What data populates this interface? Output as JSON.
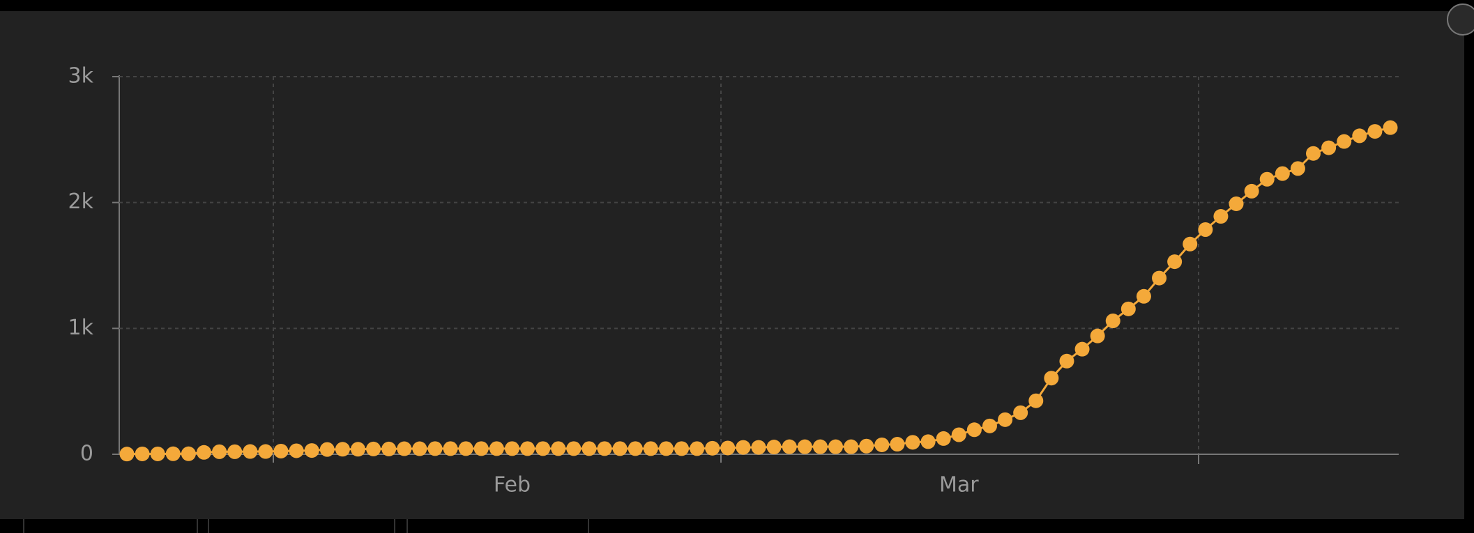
{
  "chart_data": {
    "type": "line",
    "color": "#f4a93a",
    "categories": [
      null,
      null,
      null,
      null,
      null,
      null,
      null,
      null,
      null,
      null,
      null,
      null,
      null,
      null,
      null,
      null,
      null,
      null,
      null,
      null,
      null,
      null,
      null,
      null,
      null,
      "Feb",
      null,
      null,
      null,
      null,
      null,
      null,
      null,
      null,
      null,
      null,
      null,
      null,
      null,
      null,
      null,
      null,
      null,
      null,
      null,
      null,
      null,
      null,
      null,
      null,
      null,
      null,
      null,
      null,
      "Mar",
      null,
      null,
      null,
      null,
      null,
      null,
      null,
      null,
      null,
      null,
      null,
      null,
      null,
      null,
      null,
      null,
      null,
      null,
      null,
      null,
      null,
      null,
      null,
      null,
      null,
      null,
      null,
      null
    ],
    "values": [
      2,
      3,
      3,
      4,
      4,
      15,
      20,
      20,
      22,
      22,
      25,
      28,
      30,
      38,
      40,
      40,
      42,
      42,
      44,
      44,
      45,
      45,
      45,
      45,
      45,
      45,
      45,
      45,
      45,
      45,
      45,
      45,
      45,
      45,
      45,
      45,
      45,
      45,
      48,
      50,
      55,
      55,
      58,
      60,
      60,
      60,
      60,
      60,
      65,
      75,
      80,
      95,
      100,
      125,
      155,
      195,
      225,
      275,
      330,
      425,
      605,
      740,
      835,
      940,
      1060,
      1155,
      1255,
      1400,
      1530,
      1670,
      1785,
      1890,
      1990,
      2090,
      2185,
      2230,
      2270,
      2390,
      2435,
      2485,
      2530,
      2565,
      2595
    ],
    "ylim": [
      0,
      3000
    ],
    "yticks": [
      0,
      {
        "value": 1000,
        "label": "1k"
      },
      {
        "value": 2000,
        "label": "2k"
      },
      {
        "value": 3000,
        "label": "3k"
      }
    ],
    "grid": true
  }
}
